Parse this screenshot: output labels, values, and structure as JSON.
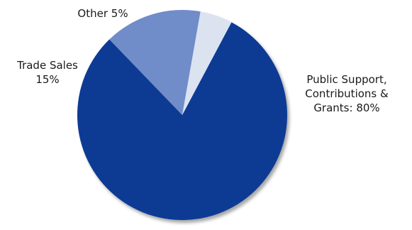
{
  "chart_data": {
    "type": "pie",
    "slices": [
      {
        "label_lines": [
          "Public Support,",
          "Contributions &",
          "Grants: 80%"
        ],
        "value": 80,
        "color": "#0d3a94"
      },
      {
        "label_lines": [
          "Trade Sales",
          "15%"
        ],
        "value": 15,
        "color": "#6f8cc9"
      },
      {
        "label_lines": [
          "Other 5%"
        ],
        "value": 5,
        "color": "#dbe3f1"
      }
    ],
    "legend": "none",
    "grid": false
  }
}
